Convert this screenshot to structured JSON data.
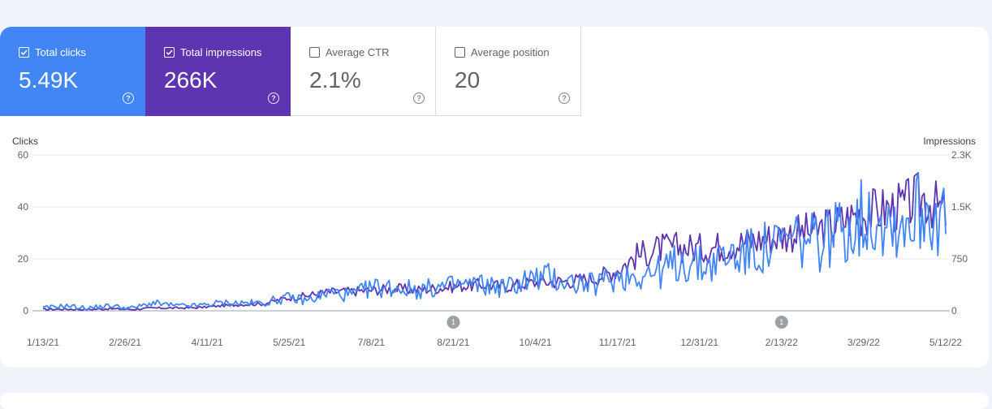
{
  "metrics": [
    {
      "label": "Total clicks",
      "value": "5.49K",
      "checked": true
    },
    {
      "label": "Total impressions",
      "value": "266K",
      "checked": true
    },
    {
      "label": "Average CTR",
      "value": "2.1%",
      "checked": false
    },
    {
      "label": "Average position",
      "value": "20",
      "checked": false
    }
  ],
  "colors": {
    "clicks": "#4285f4",
    "impressions": "#5e35b1",
    "annotation": "#9aa0a6"
  },
  "annotations": [
    {
      "label": "1",
      "x": "8/21/21"
    },
    {
      "label": "1",
      "x": "2/13/22"
    }
  ],
  "chart_data": {
    "type": "line",
    "y_left_label": "Clicks",
    "y_right_label": "Impressions",
    "y_left_ticks": [
      "60",
      "40",
      "20",
      "0"
    ],
    "y_right_ticks": [
      "2.3K",
      "1.5K",
      "750",
      "0"
    ],
    "ylim_left": [
      0,
      60
    ],
    "ylim_right": [
      0,
      2250
    ],
    "x_ticks": [
      "1/13/21",
      "2/26/21",
      "4/11/21",
      "5/25/21",
      "7/8/21",
      "8/21/21",
      "10/4/21",
      "11/17/21",
      "12/31/21",
      "2/13/22",
      "3/29/22",
      "5/12/22"
    ],
    "x_start": "1/13/21",
    "x_end": "5/12/22",
    "grid": true,
    "series": [
      {
        "name": "Total clicks",
        "axis": "left",
        "values": [
          1,
          2,
          1,
          2,
          1,
          3,
          2,
          2,
          3,
          3,
          3,
          5,
          4,
          7,
          6,
          9,
          9,
          8,
          9,
          10,
          10,
          9,
          12,
          13,
          11,
          10,
          13,
          14,
          15,
          19,
          17,
          21,
          22,
          24,
          27,
          26,
          30,
          35,
          37,
          33,
          40,
          36
        ]
      },
      {
        "name": "Total impressions",
        "axis": "right",
        "values": [
          20,
          25,
          20,
          30,
          20,
          40,
          40,
          45,
          70,
          90,
          100,
          180,
          220,
          270,
          280,
          300,
          320,
          300,
          330,
          360,
          380,
          350,
          400,
          420,
          430,
          470,
          580,
          800,
          900,
          920,
          900,
          950,
          1000,
          1050,
          1120,
          1150,
          1250,
          1400,
          1450,
          1500,
          1650,
          1400
        ]
      }
    ]
  }
}
